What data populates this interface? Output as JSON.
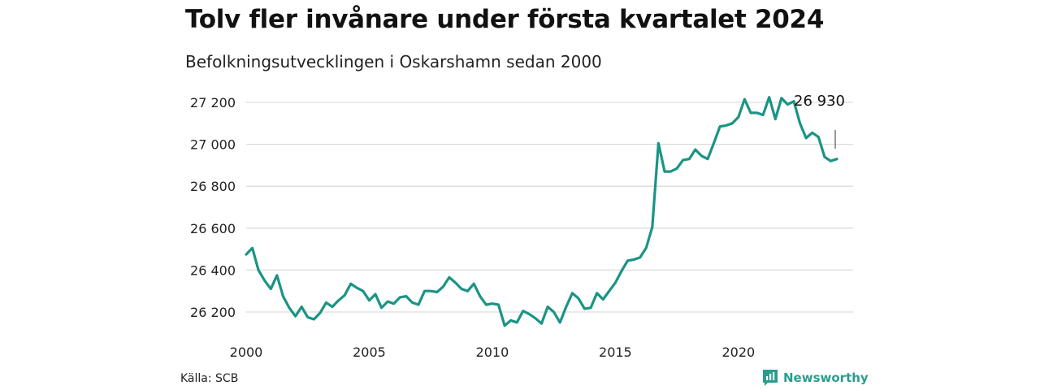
{
  "title": "Tolv fler invånare under första kvartalet 2024",
  "subtitle": "Befolkningsutvecklingen i Oskarshamn sedan 2000",
  "source": "Källa: SCB",
  "brand": {
    "name": "Newsworthy",
    "icon": "newsworthy-logo-icon",
    "color": "#2a9d8f"
  },
  "chart_data": {
    "type": "line",
    "xlabel": "",
    "ylabel": "",
    "ylim": [
      26120,
      27240
    ],
    "xlim": [
      2000,
      2024.5
    ],
    "grid": true,
    "line_color": "#1a9485",
    "y_ticks": [
      {
        "value": 26200,
        "label": "26 200"
      },
      {
        "value": 26400,
        "label": "26 400"
      },
      {
        "value": 26600,
        "label": "26 600"
      },
      {
        "value": 26800,
        "label": "26 800"
      },
      {
        "value": 27000,
        "label": "27 000"
      },
      {
        "value": 27200,
        "label": "27 200"
      }
    ],
    "x_ticks": [
      {
        "value": 2000,
        "label": "2000"
      },
      {
        "value": 2005,
        "label": "2005"
      },
      {
        "value": 2010,
        "label": "2010"
      },
      {
        "value": 2015,
        "label": "2015"
      },
      {
        "value": 2020,
        "label": "2020"
      }
    ],
    "annotation": {
      "label": "26 930",
      "x": 2024,
      "y": 26930
    },
    "series": [
      {
        "x": [
          2000.0,
          2000.25,
          2000.5,
          2000.75,
          2001.0,
          2001.25,
          2001.5,
          2001.75,
          2002.0,
          2002.25,
          2002.5,
          2002.75,
          2003.0,
          2003.25,
          2003.5,
          2003.75,
          2004.0,
          2004.25,
          2004.5,
          2004.75,
          2005.0,
          2005.25,
          2005.5,
          2005.75,
          2006.0,
          2006.25,
          2006.5,
          2006.75,
          2007.0,
          2007.25,
          2007.5,
          2007.75,
          2008.0,
          2008.25,
          2008.5,
          2008.75,
          2009.0,
          2009.25,
          2009.5,
          2009.75,
          2010.0,
          2010.25,
          2010.5,
          2010.75,
          2011.0,
          2011.25,
          2011.5,
          2011.75,
          2012.0,
          2012.25,
          2012.5,
          2012.75,
          2013.0,
          2013.25,
          2013.5,
          2013.75,
          2014.0,
          2014.25,
          2014.5,
          2014.75,
          2015.0,
          2015.25,
          2015.5,
          2015.75,
          2016.0,
          2016.25,
          2016.5,
          2016.75,
          2017.0,
          2017.25,
          2017.5,
          2017.75,
          2018.0,
          2018.25,
          2018.5,
          2018.75,
          2019.0,
          2019.25,
          2019.5,
          2019.75,
          2020.0,
          2020.25,
          2020.5,
          2020.75,
          2021.0,
          2021.25,
          2021.5,
          2021.75,
          2022.0,
          2022.25,
          2022.5,
          2022.75,
          2023.0,
          2023.25,
          2023.5,
          2023.75,
          2024.0
        ],
        "values": [
          26475,
          26505,
          26400,
          26350,
          26310,
          26375,
          26275,
          26220,
          26180,
          26225,
          26175,
          26165,
          26195,
          26245,
          26225,
          26255,
          26280,
          26335,
          26315,
          26300,
          26255,
          26285,
          26220,
          26250,
          26240,
          26270,
          26275,
          26245,
          26235,
          26300,
          26300,
          26295,
          26320,
          26365,
          26340,
          26310,
          26300,
          26335,
          26275,
          26235,
          26240,
          26235,
          26135,
          26160,
          26150,
          26205,
          26190,
          26170,
          26145,
          26225,
          26200,
          26150,
          26225,
          26290,
          26265,
          26215,
          26220,
          26290,
          26260,
          26300,
          26340,
          26395,
          26445,
          26450,
          26460,
          26505,
          26605,
          27005,
          26870,
          26870,
          26885,
          26925,
          26930,
          26975,
          26945,
          26930,
          27005,
          27085,
          27090,
          27100,
          27130,
          27215,
          27150,
          27150,
          27140,
          27225,
          27120,
          27220,
          27190,
          27205,
          27100,
          27030,
          27055,
          27035,
          26940,
          26920,
          26930
        ]
      }
    ]
  }
}
